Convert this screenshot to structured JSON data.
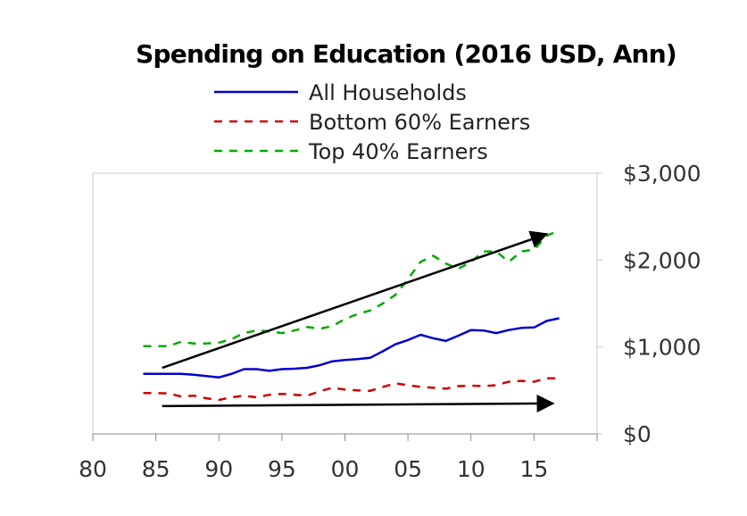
{
  "chart_data": {
    "type": "line",
    "title": "Spending on Education (2016 USD, Ann)",
    "xlabel": "",
    "ylabel": "",
    "x_tick_labels": [
      "80",
      "85",
      "90",
      "95",
      "00",
      "05",
      "10",
      "15"
    ],
    "x_tick_years": [
      1980,
      1985,
      1990,
      1995,
      2000,
      2005,
      2010,
      2015
    ],
    "xlim": [
      1980,
      2020
    ],
    "y_tick_labels": [
      "$0",
      "$1,000",
      "$2,000",
      "$3,000"
    ],
    "y_tick_values": [
      0,
      1000,
      2000,
      3000
    ],
    "ylim": [
      0,
      3000
    ],
    "y_axis_side": "right",
    "legend_position": "top-center",
    "grid": false,
    "x": [
      1984,
      1985,
      1986,
      1987,
      1988,
      1989,
      1990,
      1991,
      1992,
      1993,
      1994,
      1995,
      1996,
      1997,
      1998,
      1999,
      2000,
      2001,
      2002,
      2003,
      2004,
      2005,
      2006,
      2007,
      2008,
      2009,
      2010,
      2011,
      2012,
      2013,
      2014,
      2015,
      2016,
      2017
    ],
    "series": [
      {
        "name": "All Households",
        "color": "#0000cc",
        "style": "solid",
        "values": [
          690,
          690,
          690,
          690,
          680,
          665,
          650,
          690,
          745,
          745,
          725,
          745,
          750,
          760,
          790,
          835,
          850,
          860,
          875,
          950,
          1030,
          1080,
          1140,
          1100,
          1070,
          1130,
          1195,
          1190,
          1160,
          1195,
          1220,
          1225,
          1300,
          1330
        ]
      },
      {
        "name": "Bottom 60% Earners",
        "color": "#cc0000",
        "style": "dashed",
        "values": [
          470,
          470,
          465,
          430,
          440,
          410,
          390,
          420,
          440,
          420,
          450,
          460,
          450,
          440,
          490,
          530,
          510,
          500,
          495,
          540,
          580,
          560,
          540,
          530,
          520,
          550,
          555,
          550,
          560,
          600,
          610,
          600,
          640,
          640
        ]
      },
      {
        "name": "Top 40% Earners",
        "color": "#00aa00",
        "style": "dashed",
        "values": [
          1010,
          1010,
          1010,
          1060,
          1040,
          1040,
          1050,
          1090,
          1160,
          1190,
          1180,
          1160,
          1190,
          1230,
          1210,
          1240,
          1320,
          1380,
          1420,
          1500,
          1600,
          1780,
          1980,
          2050,
          1960,
          1900,
          1980,
          2100,
          2100,
          1980,
          2100,
          2120,
          2280,
          2340
        ]
      }
    ],
    "annotations": [
      {
        "type": "arrow",
        "label": "upward trend arrow",
        "from": [
          1985.5,
          760
        ],
        "to": [
          2016,
          2300
        ]
      },
      {
        "type": "arrow",
        "label": "flat trend arrow",
        "from": [
          1985.5,
          320
        ],
        "to": [
          2016.5,
          350
        ]
      }
    ]
  }
}
